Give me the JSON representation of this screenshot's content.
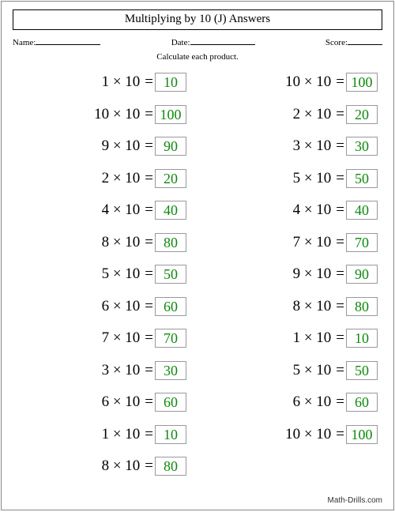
{
  "title": "Multiplying by 10 (J) Answers",
  "header": {
    "name_label": "Name:",
    "date_label": "Date:",
    "score_label": "Score:",
    "name_blank_width": 82,
    "date_blank_width": 82,
    "score_blank_width": 44
  },
  "instruction": "Calculate each product.",
  "answer_color": "#0b8a0b",
  "columns": {
    "left": [
      {
        "a": 1,
        "b": 10,
        "ans": 10
      },
      {
        "a": 10,
        "b": 10,
        "ans": 100
      },
      {
        "a": 9,
        "b": 10,
        "ans": 90
      },
      {
        "a": 2,
        "b": 10,
        "ans": 20
      },
      {
        "a": 4,
        "b": 10,
        "ans": 40
      },
      {
        "a": 8,
        "b": 10,
        "ans": 80
      },
      {
        "a": 5,
        "b": 10,
        "ans": 50
      },
      {
        "a": 6,
        "b": 10,
        "ans": 60
      },
      {
        "a": 7,
        "b": 10,
        "ans": 70
      },
      {
        "a": 3,
        "b": 10,
        "ans": 30
      },
      {
        "a": 6,
        "b": 10,
        "ans": 60
      },
      {
        "a": 1,
        "b": 10,
        "ans": 10
      },
      {
        "a": 8,
        "b": 10,
        "ans": 80
      }
    ],
    "right": [
      {
        "a": 10,
        "b": 10,
        "ans": 100
      },
      {
        "a": 2,
        "b": 10,
        "ans": 20
      },
      {
        "a": 3,
        "b": 10,
        "ans": 30
      },
      {
        "a": 5,
        "b": 10,
        "ans": 50
      },
      {
        "a": 4,
        "b": 10,
        "ans": 40
      },
      {
        "a": 7,
        "b": 10,
        "ans": 70
      },
      {
        "a": 9,
        "b": 10,
        "ans": 90
      },
      {
        "a": 8,
        "b": 10,
        "ans": 80
      },
      {
        "a": 1,
        "b": 10,
        "ans": 10
      },
      {
        "a": 5,
        "b": 10,
        "ans": 50
      },
      {
        "a": 6,
        "b": 10,
        "ans": 60
      },
      {
        "a": 10,
        "b": 10,
        "ans": 100
      }
    ]
  },
  "footer": "Math-Drills.com"
}
